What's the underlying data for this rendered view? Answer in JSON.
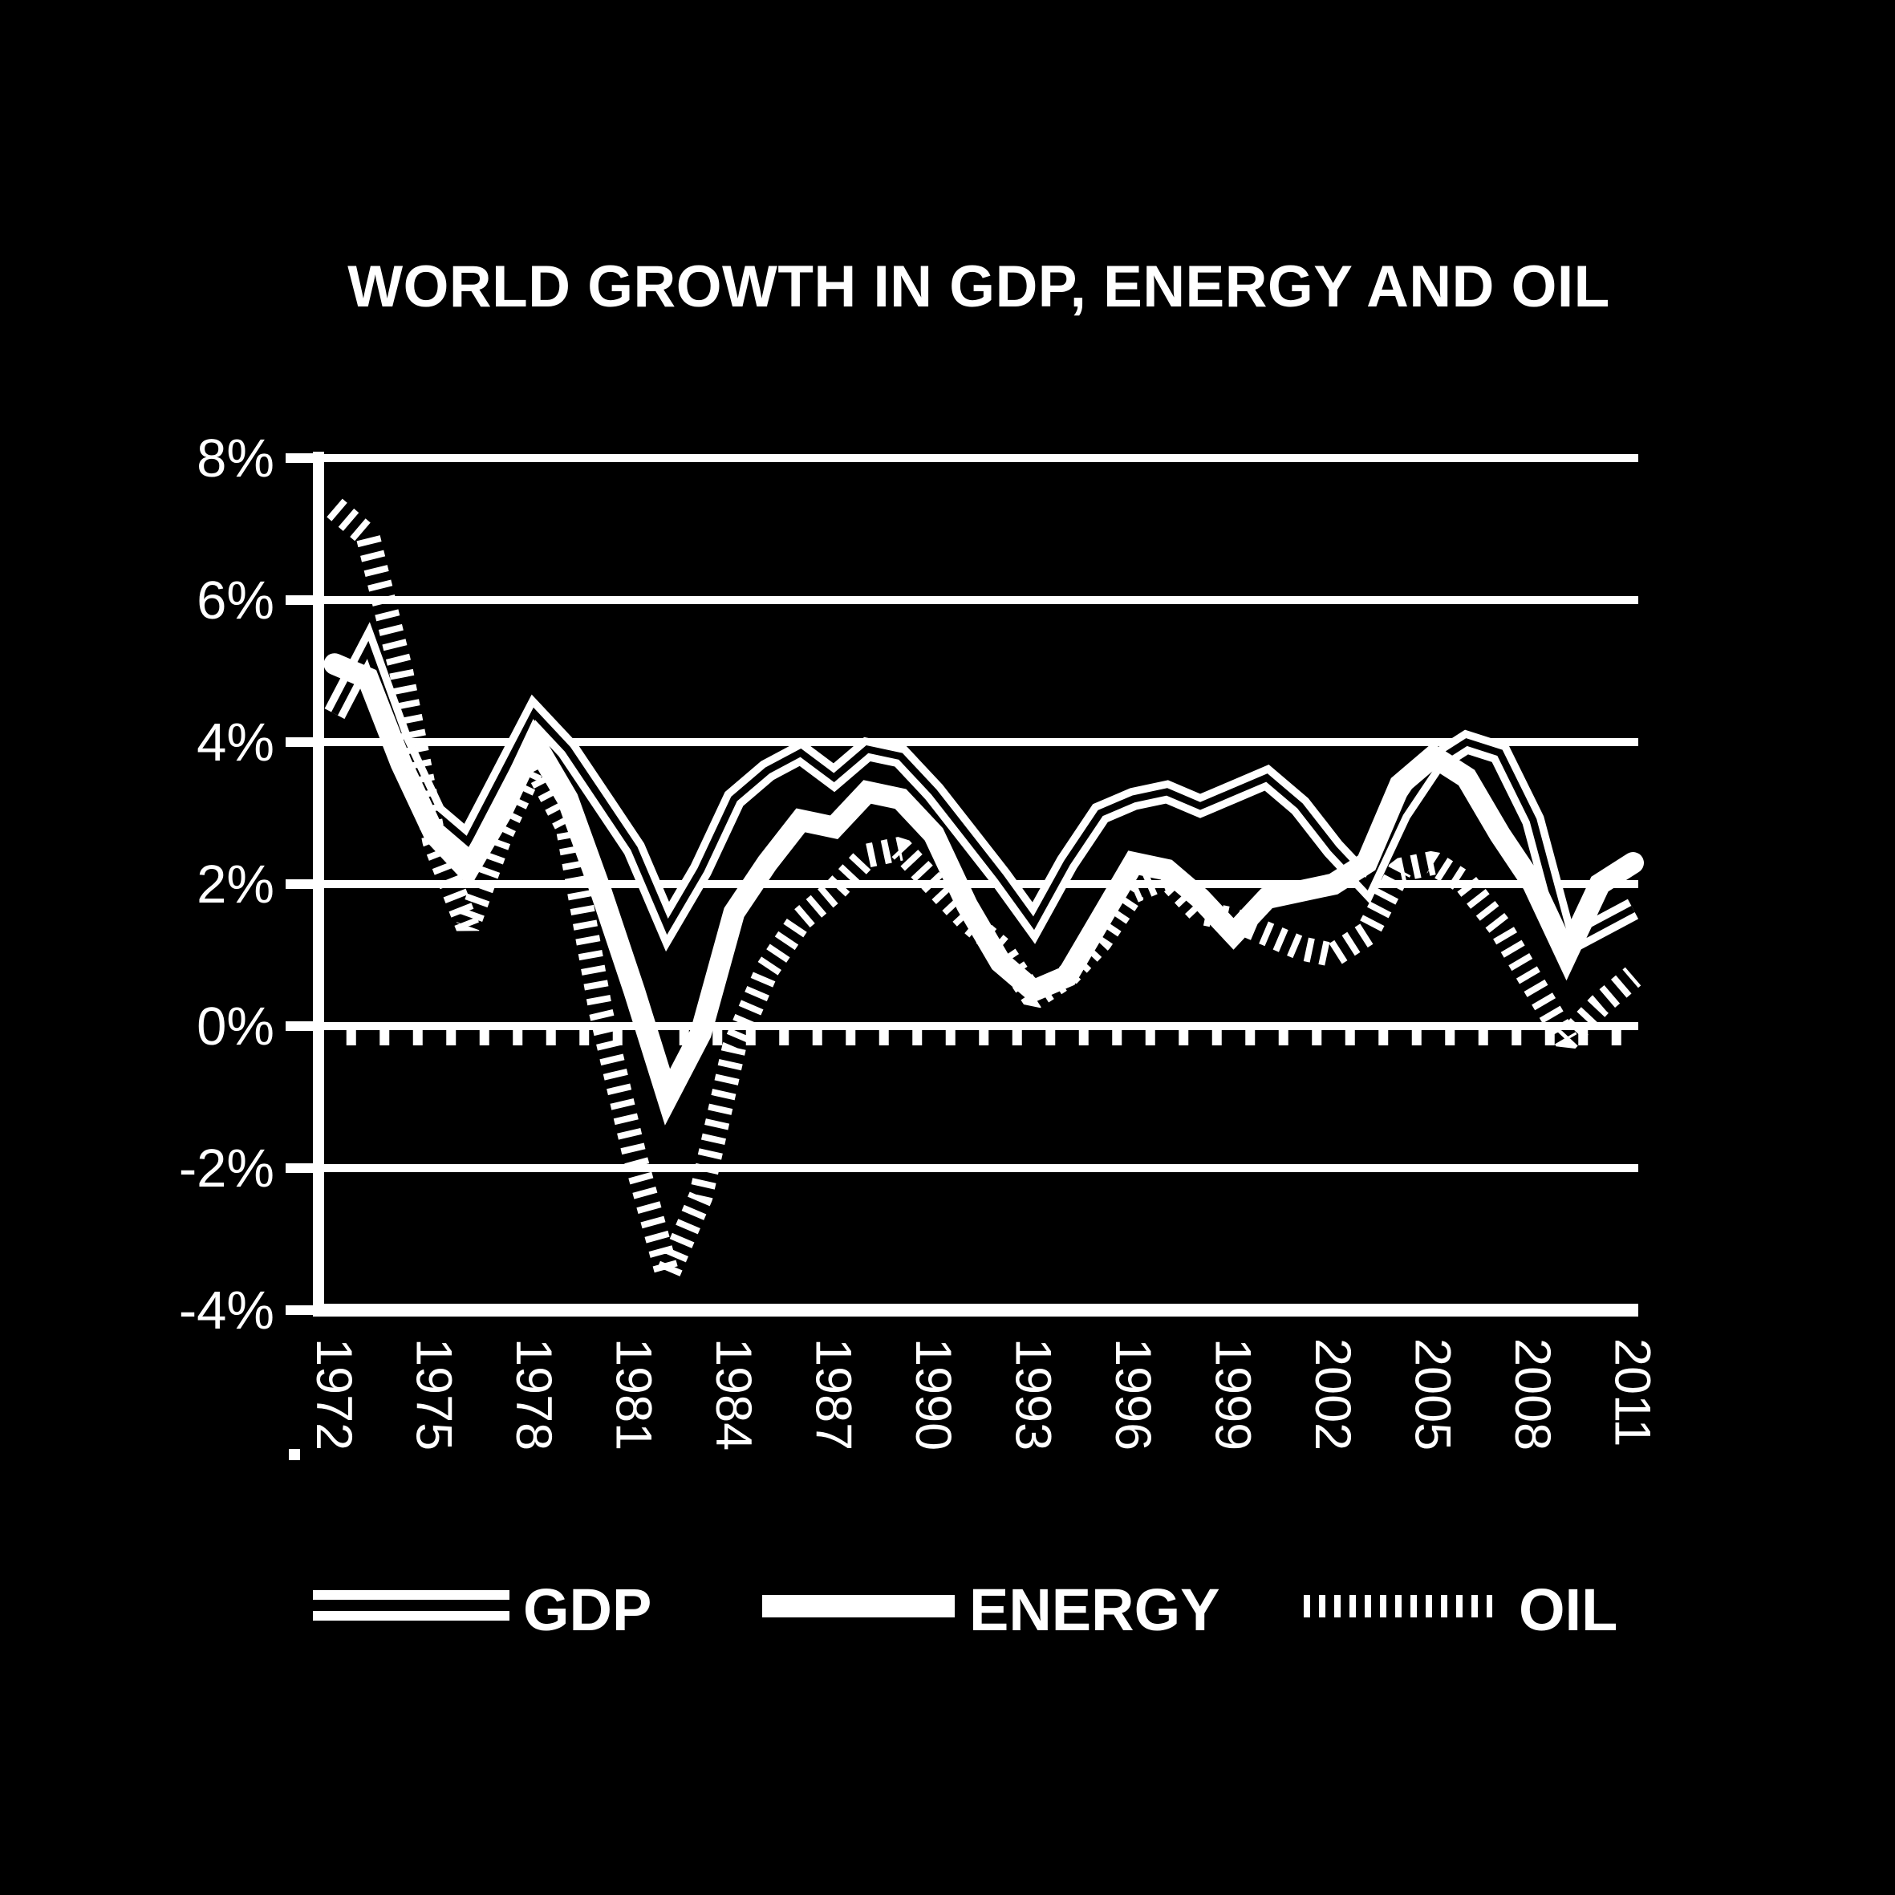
{
  "title": "WORLD GROWTH IN GDP, ENERGY AND OIL",
  "colors": {
    "background": "#000000",
    "foreground": "#ffffff"
  },
  "legend": [
    {
      "label": "GDP",
      "style": "double-line"
    },
    {
      "label": "ENERGY",
      "style": "thick-solid"
    },
    {
      "label": "OIL",
      "style": "hatched-dashed"
    }
  ],
  "chart_data": {
    "type": "line",
    "title": "WORLD GROWTH IN GDP, ENERGY AND OIL",
    "xlabel": "",
    "ylabel": "",
    "ylim": [
      -4,
      8
    ],
    "grid": true,
    "legend_position": "bottom",
    "y_ticks": [
      "8%",
      "6%",
      "4%",
      "2%",
      "0%",
      "-2%",
      "-4%"
    ],
    "y_tick_values": [
      8,
      6,
      4,
      2,
      0,
      -2,
      -4
    ],
    "x": [
      1972,
      1973,
      1974,
      1975,
      1976,
      1977,
      1978,
      1979,
      1980,
      1981,
      1982,
      1983,
      1984,
      1985,
      1986,
      1987,
      1988,
      1989,
      1990,
      1991,
      1992,
      1993,
      1994,
      1995,
      1996,
      1997,
      1998,
      1999,
      2000,
      2001,
      2002,
      2003,
      2004,
      2005,
      2006,
      2007,
      2008,
      2009,
      2010,
      2011
    ],
    "x_tick_labels": [
      "1972",
      "1975",
      "1978",
      "1981",
      "1984",
      "1987",
      "1990",
      "1993",
      "1996",
      "1999",
      "2002",
      "2005",
      "2008",
      "2011"
    ],
    "series": [
      {
        "name": "GDP",
        "style": "double-line",
        "values": [
          4.4,
          5.3,
          4.0,
          3.0,
          2.6,
          3.5,
          4.4,
          3.9,
          3.2,
          2.5,
          1.4,
          2.2,
          3.2,
          3.6,
          3.85,
          3.5,
          3.9,
          3.8,
          3.3,
          2.7,
          2.1,
          1.45,
          2.3,
          3.0,
          3.2,
          3.3,
          3.1,
          3.3,
          3.5,
          3.1,
          2.5,
          2.0,
          3.0,
          3.7,
          4.0,
          3.85,
          2.9,
          1.15,
          1.4,
          1.65
        ]
      },
      {
        "name": "ENERGY",
        "style": "thick-solid",
        "values": [
          5.1,
          4.9,
          3.7,
          2.7,
          2.2,
          3.0,
          4.0,
          3.2,
          1.9,
          0.5,
          -1.0,
          -0.1,
          1.6,
          2.3,
          2.9,
          2.8,
          3.3,
          3.2,
          2.7,
          1.7,
          0.9,
          0.5,
          0.7,
          1.5,
          2.3,
          2.2,
          1.8,
          1.3,
          1.8,
          1.9,
          2.0,
          2.3,
          3.4,
          3.8,
          3.5,
          2.7,
          2.0,
          1.0,
          2.0,
          2.3
        ]
      },
      {
        "name": "OIL",
        "style": "hatched-dashed",
        "values": [
          7.3,
          6.9,
          5.0,
          2.6,
          1.4,
          2.7,
          3.7,
          2.8,
          0.2,
          -1.8,
          -3.5,
          -2.4,
          -0.3,
          0.8,
          1.5,
          1.9,
          2.4,
          2.5,
          2.0,
          1.5,
          1.1,
          0.4,
          0.7,
          1.2,
          1.9,
          2.1,
          1.6,
          1.5,
          1.3,
          1.1,
          1.0,
          1.3,
          2.2,
          2.3,
          2.0,
          1.4,
          0.6,
          -0.2,
          0.3,
          0.7
        ]
      }
    ]
  }
}
